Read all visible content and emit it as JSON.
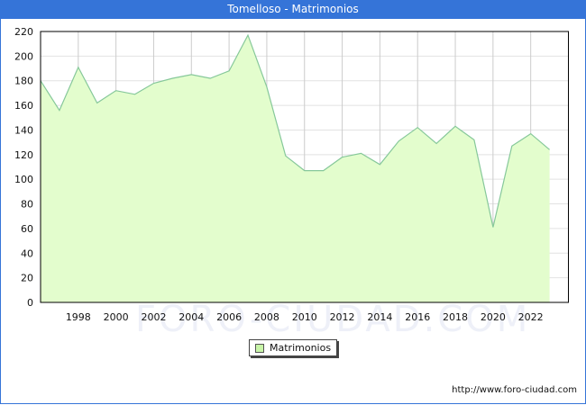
{
  "title": "Tomelloso - Matrimonios",
  "source_url": "http://www.foro-ciudad.com",
  "watermark": "FORO-CIUDAD.COM",
  "colors": {
    "header": "#3574d8",
    "fill": "#e3fdcd",
    "line": "#86c89a",
    "grid": "#cccccc",
    "legend_swatch": "#c8f5a8"
  },
  "chart_data": {
    "type": "area",
    "title": "Tomelloso - Matrimonios",
    "xlabel": "",
    "ylabel": "",
    "x": [
      1996,
      1997,
      1998,
      1999,
      2000,
      2001,
      2002,
      2003,
      2004,
      2005,
      2006,
      2007,
      2008,
      2009,
      2010,
      2011,
      2012,
      2013,
      2014,
      2015,
      2016,
      2017,
      2018,
      2019,
      2020,
      2021,
      2022,
      2023
    ],
    "series": [
      {
        "name": "Matrimonios",
        "values": [
          180,
          156,
          191,
          162,
          172,
          169,
          178,
          182,
          185,
          182,
          188,
          217,
          175,
          119,
          107,
          107,
          118,
          121,
          112,
          131,
          142,
          129,
          143,
          132,
          61,
          127,
          137,
          124
        ]
      }
    ],
    "ylim": [
      0,
      220
    ],
    "xlim": [
      1996,
      2024
    ],
    "yticks": [
      0,
      20,
      40,
      60,
      80,
      100,
      120,
      140,
      160,
      180,
      200,
      220
    ],
    "xticks": [
      1998,
      2000,
      2002,
      2004,
      2006,
      2008,
      2010,
      2012,
      2014,
      2016,
      2018,
      2020,
      2022
    ],
    "grid": true,
    "legend": {
      "position": "bottom-center",
      "entries": [
        "Matrimonios"
      ]
    }
  }
}
